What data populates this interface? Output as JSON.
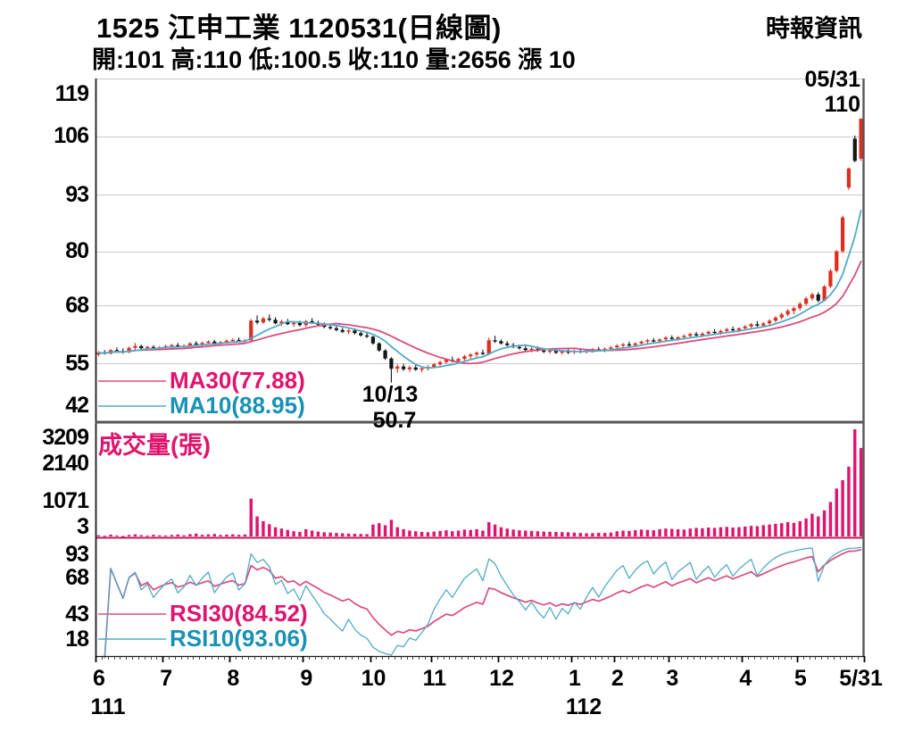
{
  "header": {
    "title": "1525  江申工業 1120531(日線圖)",
    "source": "時報資訊",
    "quote_line": "開:101 高:110 低:100.5 收:110 量:2656 漲 10"
  },
  "colors": {
    "label_pink": "#e0136d",
    "label_cyan": "#1891b4",
    "line_pink": "#dc4b7d",
    "line_cyan": "#52aac7",
    "up_red": "#dd2f1f",
    "down_black": "#151515",
    "grid": "#c9c9c9",
    "axis_black": "#1a1a1a",
    "separator_gray": "#55565a",
    "volume_bar": "#e0136d",
    "volume_baseline": "#c11a60"
  },
  "chart_data": {
    "type": "candlestick",
    "title": "1525 江申工業 1120531(日線圖)",
    "price_panel": {
      "ylim": [
        42,
        119
      ],
      "y_ticks": [
        119,
        106,
        93,
        80,
        68,
        55,
        42
      ],
      "gridlines": [
        106,
        93,
        80,
        68,
        55
      ],
      "legend": [
        {
          "label": "MA30(77.88)",
          "color": "#e0136d"
        },
        {
          "label": "MA10(88.95)",
          "color": "#1891b4"
        }
      ],
      "annotations": {
        "last_date": "05/31",
        "last_price": "110",
        "low_date": "10/13",
        "low_price": "50.7",
        "low_index": 48
      }
    },
    "volume_panel": {
      "label": "成交量(張)",
      "y_ticks": [
        3209,
        2140,
        1071,
        3
      ],
      "ylim": [
        3,
        3209
      ]
    },
    "rsi_panel": {
      "y_ticks": [
        93,
        68,
        43,
        18
      ],
      "ylim": [
        0,
        100
      ],
      "legend": [
        {
          "label": "RSI30(84.52)",
          "color": "#e0136d"
        },
        {
          "label": "RSI10(93.06)",
          "color": "#1891b4"
        }
      ]
    },
    "x_axis": {
      "months": [
        {
          "label": "6",
          "days": 11
        },
        {
          "label": "7",
          "days": 11
        },
        {
          "label": "8",
          "days": 12
        },
        {
          "label": "9",
          "days": 11
        },
        {
          "label": "10",
          "days": 10
        },
        {
          "label": "11",
          "days": 11
        },
        {
          "label": "12",
          "days": 12
        },
        {
          "label": "1",
          "days": 7
        },
        {
          "label": "2",
          "days": 9
        },
        {
          "label": "3",
          "days": 12
        },
        {
          "label": "4",
          "days": 9
        },
        {
          "label": "5",
          "days": 11
        }
      ],
      "end_label": "5/31",
      "year_labels": [
        {
          "text": "111",
          "month_index": 0
        },
        {
          "text": "112",
          "month_index": 7
        }
      ]
    },
    "candles": [
      [
        57.0,
        57.8,
        56.6,
        57.4
      ],
      [
        57.4,
        58.0,
        57.0,
        57.2
      ],
      [
        57.2,
        58.2,
        57.0,
        58.0
      ],
      [
        58.0,
        58.6,
        57.6,
        57.8
      ],
      [
        57.8,
        58.4,
        57.2,
        57.5
      ],
      [
        57.5,
        58.8,
        57.3,
        58.5
      ],
      [
        58.5,
        59.6,
        58.0,
        58.9
      ],
      [
        58.9,
        59.2,
        58.1,
        58.4
      ],
      [
        58.4,
        59.0,
        58.0,
        58.7
      ],
      [
        58.7,
        59.1,
        58.1,
        58.3
      ],
      [
        58.3,
        58.9,
        57.9,
        58.6
      ],
      [
        58.6,
        59.2,
        58.2,
        58.9
      ],
      [
        58.9,
        59.4,
        58.5,
        59.1
      ],
      [
        59.1,
        59.6,
        58.6,
        58.8
      ],
      [
        58.8,
        59.3,
        58.4,
        59.0
      ],
      [
        59.0,
        59.8,
        58.8,
        59.5
      ],
      [
        59.5,
        60.0,
        59.0,
        59.3
      ],
      [
        59.3,
        59.9,
        58.9,
        59.6
      ],
      [
        59.6,
        60.2,
        59.2,
        59.9
      ],
      [
        59.9,
        60.3,
        59.3,
        59.5
      ],
      [
        59.5,
        60.0,
        59.1,
        59.8
      ],
      [
        59.8,
        60.4,
        59.4,
        60.1
      ],
      [
        60.1,
        60.6,
        59.7,
        60.3
      ],
      [
        60.3,
        60.8,
        59.8,
        60.0
      ],
      [
        60.0,
        60.5,
        59.6,
        60.2
      ],
      [
        60.2,
        65.0,
        60.0,
        64.6
      ],
      [
        64.6,
        65.8,
        63.8,
        64.2
      ],
      [
        64.2,
        65.5,
        63.9,
        65.1
      ],
      [
        65.1,
        66.0,
        64.4,
        64.8
      ],
      [
        64.8,
        65.4,
        63.8,
        64.0
      ],
      [
        64.0,
        64.8,
        63.4,
        64.4
      ],
      [
        64.4,
        65.0,
        63.6,
        63.8
      ],
      [
        63.8,
        64.5,
        63.2,
        64.1
      ],
      [
        64.1,
        64.6,
        63.3,
        63.6
      ],
      [
        63.6,
        64.8,
        63.2,
        64.5
      ],
      [
        64.5,
        65.2,
        63.9,
        64.1
      ],
      [
        64.1,
        64.6,
        63.4,
        63.7
      ],
      [
        63.7,
        64.2,
        62.9,
        63.2
      ],
      [
        63.2,
        63.8,
        62.6,
        62.9
      ],
      [
        62.9,
        63.4,
        62.2,
        62.5
      ],
      [
        62.5,
        63.0,
        61.8,
        62.1
      ],
      [
        62.1,
        62.8,
        61.6,
        62.4
      ],
      [
        62.4,
        62.9,
        61.5,
        61.8
      ],
      [
        61.8,
        62.3,
        61.0,
        61.3
      ],
      [
        61.3,
        61.9,
        60.7,
        61.0
      ],
      [
        61.0,
        61.2,
        59.2,
        59.5
      ],
      [
        59.5,
        59.8,
        57.6,
        57.9
      ],
      [
        57.9,
        58.2,
        55.8,
        56.1
      ],
      [
        56.1,
        56.4,
        50.7,
        53.8
      ],
      [
        53.8,
        54.8,
        52.9,
        54.3
      ],
      [
        54.3,
        54.9,
        53.3,
        53.7
      ],
      [
        53.7,
        54.5,
        53.1,
        54.1
      ],
      [
        54.1,
        54.7,
        53.3,
        53.6
      ],
      [
        53.6,
        54.3,
        53.0,
        53.9
      ],
      [
        53.9,
        54.6,
        53.4,
        54.2
      ],
      [
        54.2,
        55.1,
        53.9,
        54.8
      ],
      [
        54.8,
        55.6,
        54.3,
        55.3
      ],
      [
        55.3,
        56.1,
        54.9,
        55.8
      ],
      [
        55.8,
        56.5,
        55.2,
        55.5
      ],
      [
        55.5,
        56.3,
        55.1,
        56.0
      ],
      [
        56.0,
        56.9,
        55.6,
        56.6
      ],
      [
        56.6,
        57.3,
        56.1,
        57.0
      ],
      [
        57.0,
        57.7,
        56.4,
        57.4
      ],
      [
        57.4,
        58.1,
        56.9,
        57.1
      ],
      [
        57.1,
        60.8,
        56.9,
        60.2
      ],
      [
        60.2,
        61.2,
        59.6,
        60.0
      ],
      [
        60.0,
        60.4,
        59.2,
        59.5
      ],
      [
        59.5,
        60.0,
        58.8,
        59.1
      ],
      [
        59.1,
        59.6,
        58.4,
        58.7
      ],
      [
        58.7,
        59.2,
        58.1,
        58.4
      ],
      [
        58.4,
        58.9,
        57.7,
        58.0
      ],
      [
        58.0,
        58.6,
        57.5,
        58.3
      ],
      [
        58.3,
        58.8,
        57.6,
        57.9
      ],
      [
        57.9,
        58.4,
        57.3,
        57.6
      ],
      [
        57.6,
        58.2,
        57.2,
        57.9
      ],
      [
        57.9,
        58.3,
        57.1,
        57.4
      ],
      [
        57.4,
        58.0,
        57.0,
        57.7
      ],
      [
        57.7,
        58.2,
        57.1,
        57.5
      ],
      [
        57.5,
        58.1,
        57.1,
        57.8
      ],
      [
        57.8,
        58.3,
        57.3,
        57.6
      ],
      [
        57.6,
        58.2,
        57.2,
        57.9
      ],
      [
        57.9,
        58.5,
        57.4,
        58.2
      ],
      [
        58.2,
        58.7,
        57.7,
        58.0
      ],
      [
        58.0,
        58.6,
        57.5,
        58.3
      ],
      [
        58.3,
        58.9,
        57.8,
        58.6
      ],
      [
        58.6,
        59.3,
        58.2,
        59.0
      ],
      [
        59.0,
        59.6,
        58.5,
        59.3
      ],
      [
        59.3,
        59.9,
        58.8,
        59.1
      ],
      [
        59.1,
        59.7,
        58.7,
        59.5
      ],
      [
        59.5,
        60.1,
        59.1,
        59.9
      ],
      [
        59.9,
        60.5,
        59.4,
        60.2
      ],
      [
        60.2,
        60.7,
        59.6,
        60.0
      ],
      [
        60.0,
        60.6,
        59.5,
        60.4
      ],
      [
        60.4,
        61.1,
        59.9,
        60.8
      ],
      [
        60.8,
        61.3,
        60.2,
        60.5
      ],
      [
        60.5,
        61.1,
        60.1,
        60.9
      ],
      [
        60.9,
        61.5,
        60.4,
        61.2
      ],
      [
        61.2,
        61.9,
        60.8,
        61.6
      ],
      [
        61.6,
        62.1,
        61.0,
        61.3
      ],
      [
        61.3,
        62.0,
        60.9,
        61.7
      ],
      [
        61.7,
        62.4,
        61.2,
        62.1
      ],
      [
        62.1,
        62.7,
        61.5,
        61.9
      ],
      [
        61.9,
        62.6,
        61.4,
        62.3
      ],
      [
        62.3,
        63.0,
        61.8,
        62.7
      ],
      [
        62.7,
        63.3,
        62.1,
        62.5
      ],
      [
        62.5,
        63.1,
        62.0,
        62.9
      ],
      [
        62.9,
        63.6,
        62.4,
        63.3
      ],
      [
        63.3,
        64.1,
        62.9,
        63.8
      ],
      [
        63.8,
        64.5,
        63.2,
        63.5
      ],
      [
        63.5,
        64.3,
        63.1,
        64.0
      ],
      [
        64.0,
        64.9,
        63.6,
        64.6
      ],
      [
        64.6,
        65.6,
        64.2,
        65.3
      ],
      [
        65.3,
        66.4,
        64.9,
        66.0
      ],
      [
        66.0,
        67.2,
        65.6,
        66.8
      ],
      [
        66.8,
        67.8,
        66.0,
        67.4
      ],
      [
        67.4,
        68.8,
        66.9,
        68.4
      ],
      [
        68.4,
        70.0,
        68.0,
        69.6
      ],
      [
        69.6,
        70.9,
        69.1,
        70.5
      ],
      [
        70.5,
        71.0,
        68.7,
        69.1
      ],
      [
        69.1,
        72.6,
        68.9,
        72.3
      ],
      [
        72.3,
        76.2,
        71.9,
        75.8
      ],
      [
        75.8,
        80.5,
        75.4,
        80.2
      ],
      [
        80.2,
        88.2,
        79.8,
        87.8
      ],
      [
        94.5,
        99.0,
        94.0,
        98.8
      ],
      [
        105.5,
        106.2,
        100.2,
        100.5
      ],
      [
        101.0,
        110.0,
        100.5,
        110.0
      ]
    ],
    "volumes": [
      60,
      45,
      80,
      55,
      40,
      70,
      90,
      65,
      50,
      75,
      60,
      55,
      70,
      85,
      60,
      95,
      110,
      75,
      88,
      100,
      70,
      82,
      90,
      75,
      85,
      1150,
      620,
      480,
      390,
      300,
      260,
      220,
      180,
      160,
      240,
      200,
      170,
      150,
      140,
      130,
      120,
      110,
      105,
      100,
      95,
      380,
      420,
      360,
      520,
      300,
      240,
      200,
      180,
      160,
      150,
      170,
      190,
      210,
      180,
      200,
      230,
      220,
      240,
      200,
      450,
      380,
      300,
      260,
      230,
      210,
      200,
      190,
      180,
      170,
      165,
      160,
      155,
      150,
      140,
      130,
      120,
      125,
      135,
      130,
      140,
      180,
      200,
      190,
      210,
      230,
      220,
      210,
      240,
      260,
      250,
      240,
      230,
      260,
      280,
      270,
      290,
      280,
      300,
      310,
      290,
      300,
      320,
      340,
      330,
      360,
      380,
      400,
      420,
      450,
      430,
      480,
      560,
      700,
      620,
      800,
      1050,
      1450,
      1700,
      2100,
      3209,
      2656
    ]
  }
}
